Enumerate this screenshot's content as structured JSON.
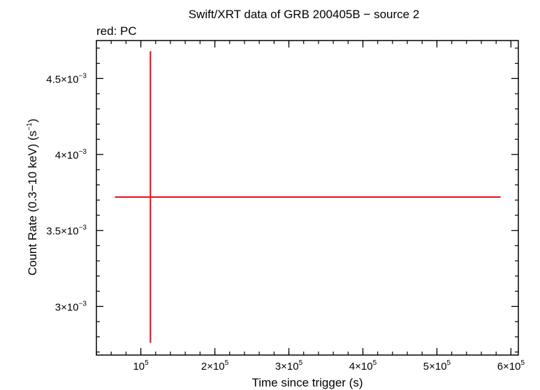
{
  "chart_data": {
    "type": "scatter",
    "title": "Swift/XRT data of GRB 200405B − source 2",
    "subtitle": "red: PC",
    "xlabel": "Time since trigger (s)",
    "ylabel_main": "Count Rate (0.3−10 keV) (s",
    "ylabel_sup": "−1",
    "ylabel_close": ")",
    "xlim": [
      40000,
      610000
    ],
    "ylim": [
      0.00268,
      0.00475
    ],
    "x_ticks": [
      {
        "value": 100000,
        "mant": "",
        "base": "10",
        "exp": "5"
      },
      {
        "value": 200000,
        "mant": "2×",
        "base": "10",
        "exp": "5"
      },
      {
        "value": 300000,
        "mant": "3×",
        "base": "10",
        "exp": "5"
      },
      {
        "value": 400000,
        "mant": "4×",
        "base": "10",
        "exp": "5"
      },
      {
        "value": 500000,
        "mant": "5×",
        "base": "10",
        "exp": "5"
      },
      {
        "value": 600000,
        "mant": "6×",
        "base": "10",
        "exp": "5"
      }
    ],
    "y_ticks": [
      {
        "value": 0.003,
        "mant": "3×",
        "base": "10",
        "exp": "−3"
      },
      {
        "value": 0.0035,
        "mant": "3.5×",
        "base": "10",
        "exp": "−3"
      },
      {
        "value": 0.004,
        "mant": "4×",
        "base": "10",
        "exp": "−3"
      },
      {
        "value": 0.0045,
        "mant": "4.5×",
        "base": "10",
        "exp": "−3"
      }
    ],
    "x_minor_step": 20000,
    "y_minor_step": 0.0001,
    "series": [
      {
        "color": "#e8161a",
        "points": [
          {
            "x": 113000,
            "x_lo": 65000,
            "x_hi": 586000,
            "y": 0.00372,
            "y_lo": 0.00276,
            "y_hi": 0.00468
          }
        ]
      }
    ]
  }
}
